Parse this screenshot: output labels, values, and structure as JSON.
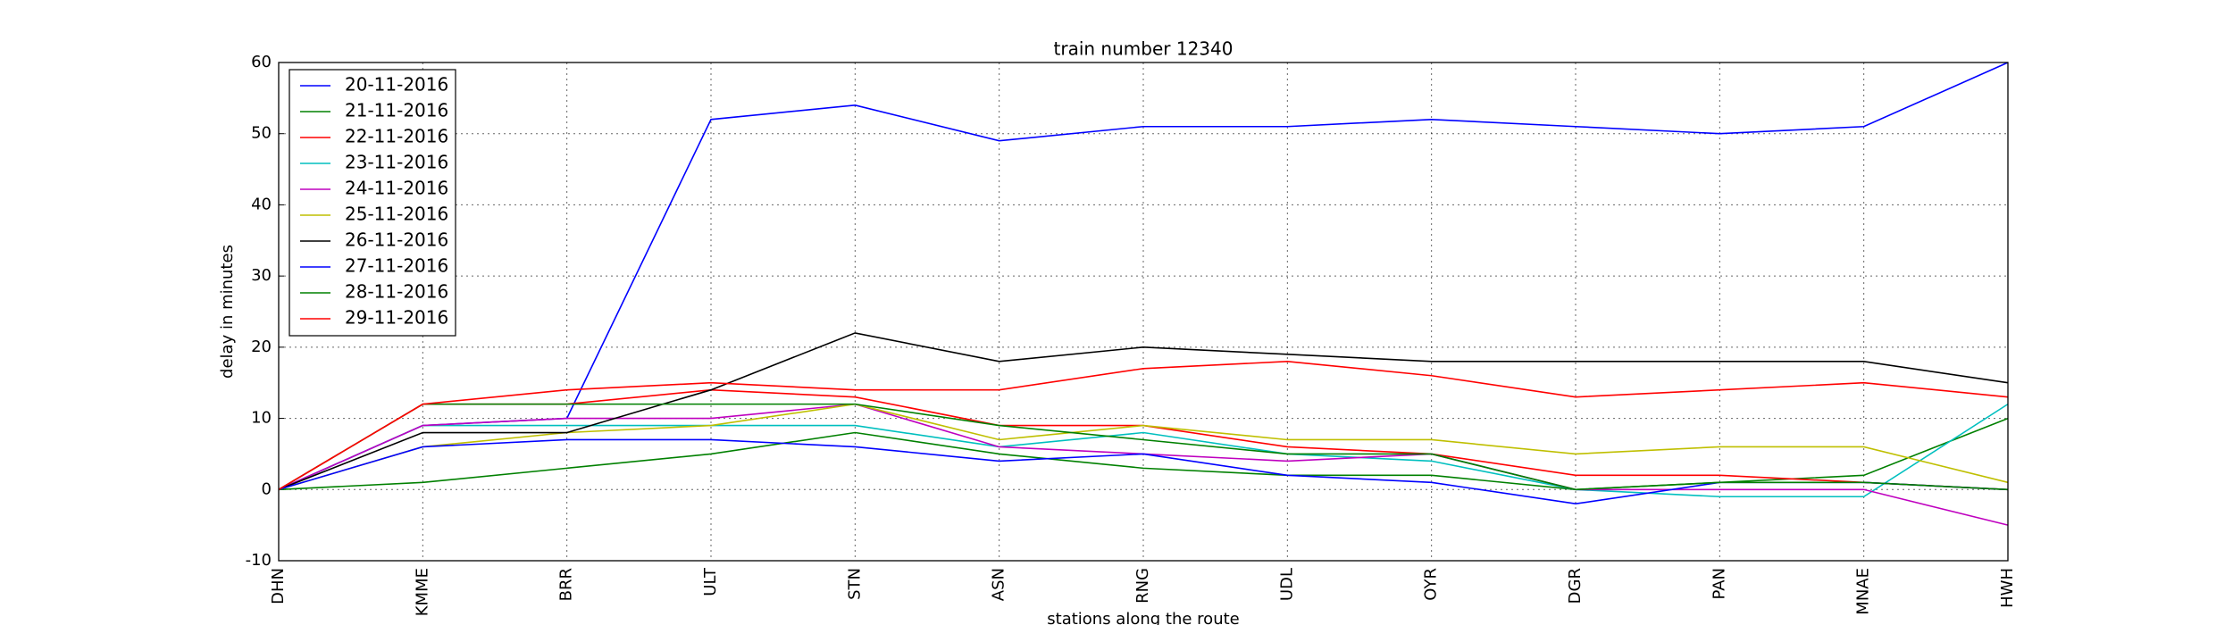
{
  "chart_data": {
    "type": "line",
    "title": "train number 12340",
    "x_label": "stations along the route",
    "y_label": "delay in minutes",
    "categories": [
      "DHN",
      "KMME",
      "BRR",
      "ULT",
      "STN",
      "ASN",
      "RNG",
      "UDL",
      "OYR",
      "DGR",
      "PAN",
      "MNAE",
      "HWH"
    ],
    "series": [
      {
        "name": "20-11-2016",
        "color": "#0000ff",
        "values": [
          0,
          9,
          10,
          52,
          54,
          49,
          51,
          51,
          52,
          51,
          50,
          51,
          60
        ]
      },
      {
        "name": "21-11-2016",
        "color": "#008000",
        "values": [
          0,
          1,
          3,
          5,
          8,
          5,
          3,
          2,
          2,
          0,
          1,
          2,
          10
        ]
      },
      {
        "name": "22-11-2016",
        "color": "#ff0000",
        "values": [
          0,
          12,
          12,
          14,
          13,
          9,
          9,
          6,
          5,
          2,
          2,
          1,
          0
        ]
      },
      {
        "name": "23-11-2016",
        "color": "#00bfbf",
        "values": [
          0,
          9,
          9,
          9,
          9,
          6,
          8,
          5,
          4,
          0,
          -1,
          -1,
          12
        ]
      },
      {
        "name": "24-11-2016",
        "color": "#bf00bf",
        "values": [
          0,
          9,
          10,
          10,
          12,
          6,
          5,
          4,
          5,
          0,
          0,
          0,
          -5
        ]
      },
      {
        "name": "25-11-2016",
        "color": "#bfbf00",
        "values": [
          0,
          6,
          8,
          9,
          12,
          7,
          9,
          7,
          7,
          5,
          6,
          6,
          1
        ]
      },
      {
        "name": "26-11-2016",
        "color": "#000000",
        "values": [
          0,
          8,
          8,
          14,
          22,
          18,
          20,
          19,
          18,
          18,
          18,
          18,
          15
        ]
      },
      {
        "name": "27-11-2016",
        "color": "#0000ff",
        "values": [
          0,
          6,
          7,
          7,
          6,
          4,
          5,
          2,
          1,
          -2,
          1,
          1,
          0
        ]
      },
      {
        "name": "28-11-2016",
        "color": "#008000",
        "values": [
          0,
          12,
          12,
          12,
          12,
          9,
          7,
          5,
          5,
          0,
          1,
          1,
          0
        ]
      },
      {
        "name": "29-11-2016",
        "color": "#ff0000",
        "values": [
          0,
          12,
          14,
          15,
          14,
          14,
          17,
          18,
          16,
          13,
          14,
          15,
          13
        ]
      }
    ],
    "ylim": [
      -10,
      60
    ],
    "yticks": [
      -10,
      0,
      10,
      20,
      30,
      40,
      50,
      60
    ],
    "grid": true,
    "legend": "upper-left"
  }
}
